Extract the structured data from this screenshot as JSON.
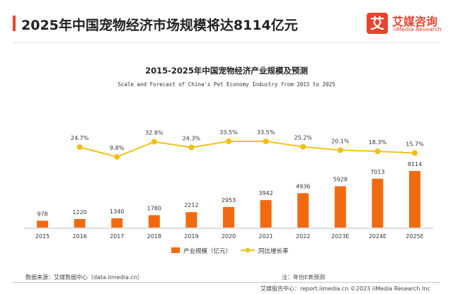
{
  "header": {
    "title": "2025年中国宠物经济市场规模将达8114亿元",
    "logo_mark": "艾",
    "logo_cn": "艾媒咨询",
    "logo_en": "iiMedia Research"
  },
  "colors": {
    "accent": "#e8432e",
    "bar": "#f26a10",
    "line": "#f2c21b",
    "line_point": "#f0c010"
  },
  "chart_data": {
    "type": "bar",
    "title": "2015-2025年中国宠物经济产业规模及预测",
    "subtitle": "Scale and Forecast of China's Pet Economy Industry from 2015 to 2025",
    "categories": [
      "2015",
      "2016",
      "2017",
      "2018",
      "2019",
      "2020",
      "2021",
      "2022",
      "2023E",
      "2024E",
      "2025E"
    ],
    "series": [
      {
        "name": "产业规模（亿元）",
        "type": "bar",
        "values": [
          978,
          1220,
          1340,
          1780,
          2212,
          2953,
          3942,
          4936,
          5928,
          7013,
          8114
        ]
      },
      {
        "name": "同比增长率",
        "type": "line",
        "values": [
          null,
          24.7,
          9.8,
          32.8,
          24.3,
          33.5,
          33.5,
          25.2,
          20.1,
          18.3,
          15.7
        ],
        "labels": [
          "",
          "24.7%",
          "9.8%",
          "32.8%",
          "24.3%",
          "33.5%",
          "33.5%",
          "25.2%",
          "20.1%",
          "18.3%",
          "15.7%"
        ]
      }
    ],
    "legend_position": "bottom",
    "grid": false
  },
  "footer": {
    "source": "数据来源：艾媒数据中心（data.iimedia.cn）",
    "note": "注：年份E表预测",
    "report": "艾媒报告中心：report.iimedia.cn  ©2023   iiMedia Research Inc"
  }
}
